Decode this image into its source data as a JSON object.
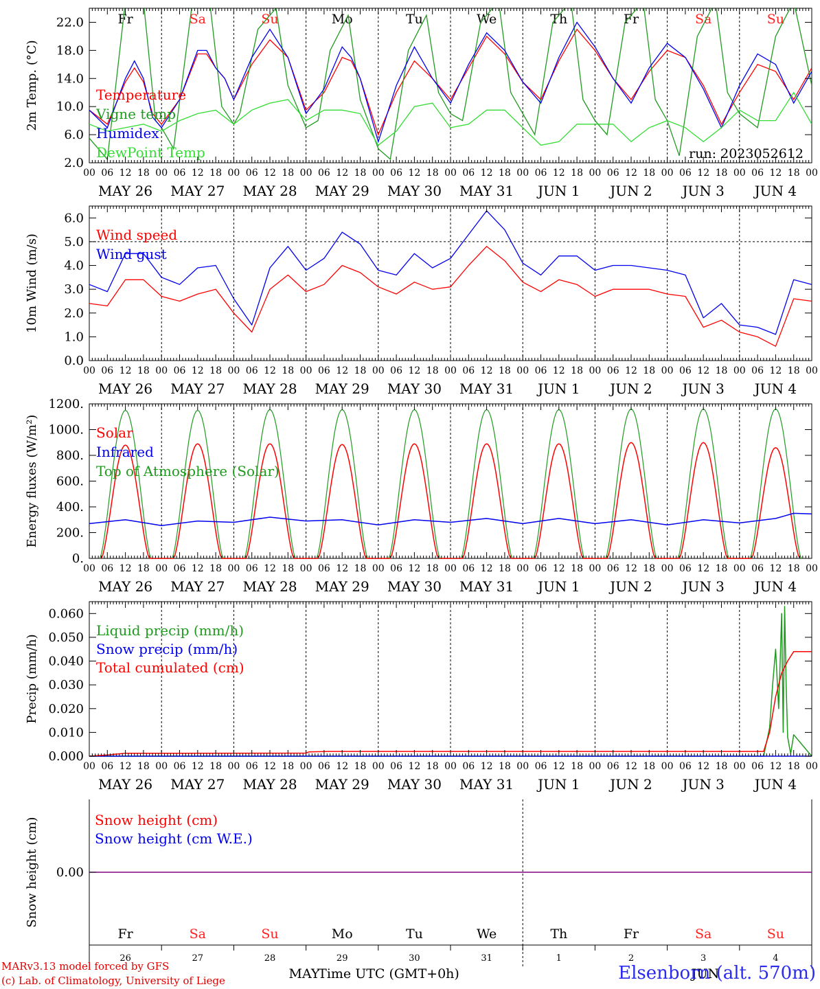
{
  "colors": {
    "red": "#ff0000",
    "green": "#1f9a1f",
    "blue": "#0000ee",
    "light_green": "#33dd33",
    "purple": "#800080",
    "weekend": "#ff2020",
    "weekday": "#000000",
    "station": "#2a2af0"
  },
  "time_axis": {
    "hour_labels": [
      "00",
      "06",
      "12",
      "18"
    ],
    "date_labels": [
      "MAY 26",
      "MAY 27",
      "MAY 28",
      "MAY 29",
      "MAY 30",
      "MAY 31",
      "JUN  1",
      "JUN  2",
      "JUN  3",
      "JUN  4"
    ],
    "weekdays": [
      {
        "label": "Fr",
        "weekend": false
      },
      {
        "label": "Sa",
        "weekend": true
      },
      {
        "label": "Su",
        "weekend": true
      },
      {
        "label": "Mo",
        "weekend": false
      },
      {
        "label": "Tu",
        "weekend": false
      },
      {
        "label": "We",
        "weekend": false
      },
      {
        "label": "Th",
        "weekend": false
      },
      {
        "label": "Fr",
        "weekend": false
      },
      {
        "label": "Sa",
        "weekend": true
      },
      {
        "label": "Su",
        "weekend": true
      }
    ],
    "day_numbers": [
      "26",
      "27",
      "28",
      "29",
      "30",
      "31",
      "1",
      "2",
      "3",
      "4"
    ],
    "month_labels": [
      "MAY",
      "JUN"
    ],
    "xlabel": "Time UTC (GMT+0h)"
  },
  "chart_data": [
    {
      "type": "line",
      "ylabel": "2m Temp. (°C)",
      "ylim": [
        2.0,
        24.0
      ],
      "yticks": [
        "2.0",
        "6.0",
        "10.0",
        "14.0",
        "18.0",
        "22.0"
      ],
      "ytick_values": [
        2,
        6,
        10,
        14,
        18,
        22
      ],
      "note": "run: 2023052612",
      "x_unit": "hours since MAY 26 00 UTC",
      "series": [
        {
          "name": "Temperature",
          "color": "red",
          "x": [
            0,
            6,
            12,
            15,
            18,
            21,
            24,
            30,
            36,
            39,
            42,
            45,
            48,
            54,
            60,
            66,
            72,
            78,
            84,
            87,
            90,
            96,
            102,
            108,
            114,
            120,
            126,
            132,
            138,
            144,
            150,
            156,
            162,
            168,
            174,
            180,
            186,
            192,
            198,
            204,
            210,
            216,
            222,
            228,
            234,
            240
          ],
          "y": [
            9.5,
            7.5,
            13.5,
            15.5,
            13.5,
            9,
            7.5,
            11,
            17.5,
            17.5,
            15.5,
            14,
            11,
            16,
            19.5,
            17,
            9.5,
            12,
            17,
            16.5,
            14,
            6,
            12,
            16.5,
            14,
            11,
            15.5,
            20,
            17.5,
            13.5,
            11,
            16.5,
            21,
            18,
            14,
            11,
            15,
            18,
            17,
            13,
            7.5,
            12,
            16,
            15,
            11,
            15.5
          ]
        },
        {
          "name": "Vigne temp",
          "color": "green",
          "x": [
            0,
            6,
            12,
            18,
            22,
            24,
            28,
            34,
            40,
            44,
            48,
            50,
            56,
            62,
            66,
            72,
            76,
            80,
            86,
            90,
            96,
            100,
            106,
            112,
            116,
            120,
            124,
            130,
            136,
            140,
            144,
            148,
            154,
            160,
            164,
            168,
            172,
            178,
            184,
            188,
            192,
            196,
            202,
            208,
            212,
            216,
            222,
            228,
            234,
            240
          ],
          "y": [
            5.5,
            2.5,
            25,
            25,
            8,
            7,
            4,
            24,
            25,
            10,
            7.5,
            9,
            21,
            24,
            13,
            7,
            8,
            18,
            23,
            11,
            4,
            2.5,
            18,
            23,
            12,
            9,
            8,
            22,
            25,
            12,
            9,
            6,
            22,
            25,
            11,
            8,
            6,
            22,
            25,
            11,
            8,
            3,
            20,
            25,
            12,
            9,
            7,
            20,
            25,
            13
          ]
        },
        {
          "name": "Humidex",
          "color": "blue",
          "x": [
            0,
            6,
            12,
            15,
            18,
            21,
            24,
            30,
            36,
            39,
            42,
            45,
            48,
            54,
            60,
            66,
            72,
            78,
            84,
            87,
            90,
            96,
            102,
            108,
            114,
            120,
            126,
            132,
            138,
            144,
            150,
            156,
            162,
            168,
            174,
            180,
            186,
            192,
            198,
            204,
            210,
            216,
            222,
            228,
            234,
            240
          ],
          "y": [
            9.5,
            7,
            14,
            16.5,
            14,
            8.5,
            7,
            11,
            18,
            18,
            15.5,
            14,
            11,
            17,
            21,
            17,
            9,
            12.5,
            18.5,
            17,
            14,
            5,
            13,
            18.5,
            14,
            10.5,
            16,
            20.5,
            18,
            13.5,
            10.5,
            17,
            22,
            18.5,
            14,
            10.5,
            15.5,
            19,
            17,
            12.5,
            7,
            13,
            17.5,
            16,
            10.5,
            15
          ]
        },
        {
          "name": "DewPoint Temp",
          "color": "light_green",
          "x": [
            0,
            6,
            12,
            18,
            24,
            30,
            36,
            42,
            48,
            54,
            60,
            66,
            72,
            78,
            84,
            90,
            96,
            102,
            108,
            114,
            120,
            126,
            132,
            138,
            144,
            150,
            156,
            162,
            168,
            174,
            180,
            186,
            192,
            198,
            204,
            210,
            216,
            222,
            228,
            234,
            240
          ],
          "y": [
            7.5,
            6.5,
            7,
            7.5,
            6.5,
            8,
            9,
            9.5,
            7.5,
            9.5,
            10.5,
            11,
            8,
            9.5,
            9.5,
            9,
            4.5,
            6.5,
            10,
            10.5,
            7,
            7.5,
            9.5,
            9.5,
            7,
            4.5,
            5,
            7.5,
            7.5,
            7.5,
            5,
            7,
            8,
            7,
            5,
            7,
            9.5,
            8,
            8,
            12,
            7.5
          ]
        }
      ]
    },
    {
      "type": "line",
      "ylabel": "10m Wind (m/s)",
      "ylim": [
        0.0,
        6.5
      ],
      "yticks": [
        "0.0",
        "1.0",
        "2.0",
        "3.0",
        "4.0",
        "5.0",
        "6.0"
      ],
      "ytick_values": [
        0,
        1,
        2,
        3,
        4,
        5,
        6
      ],
      "x_unit": "hours since MAY 26 00 UTC",
      "series": [
        {
          "name": "Wind speed",
          "color": "red",
          "x": [
            0,
            6,
            12,
            18,
            24,
            30,
            36,
            42,
            48,
            54,
            60,
            66,
            72,
            78,
            84,
            90,
            96,
            102,
            108,
            114,
            120,
            126,
            132,
            138,
            144,
            150,
            156,
            162,
            168,
            174,
            180,
            186,
            192,
            198,
            204,
            210,
            216,
            222,
            228,
            234,
            240
          ],
          "y": [
            2.4,
            2.3,
            3.4,
            3.4,
            2.7,
            2.5,
            2.8,
            3.0,
            2.0,
            1.2,
            3.0,
            3.6,
            2.9,
            3.2,
            4.0,
            3.7,
            3.1,
            2.8,
            3.3,
            3.0,
            3.1,
            4.0,
            4.8,
            4.2,
            3.3,
            2.9,
            3.4,
            3.2,
            2.7,
            3.0,
            3.0,
            3.0,
            2.8,
            2.7,
            1.4,
            1.7,
            1.2,
            1.0,
            0.6,
            2.6,
            2.5
          ]
        },
        {
          "name": "Wind gust",
          "color": "blue",
          "x": [
            0,
            6,
            12,
            18,
            24,
            30,
            36,
            42,
            48,
            54,
            60,
            66,
            72,
            78,
            84,
            90,
            96,
            102,
            108,
            114,
            120,
            126,
            132,
            138,
            144,
            150,
            156,
            162,
            168,
            174,
            180,
            186,
            192,
            198,
            204,
            210,
            216,
            222,
            228,
            234,
            240
          ],
          "y": [
            3.2,
            2.9,
            4.5,
            4.5,
            3.5,
            3.2,
            3.9,
            4.0,
            2.6,
            1.5,
            3.9,
            4.8,
            3.8,
            4.3,
            5.4,
            4.9,
            3.8,
            3.6,
            4.5,
            3.9,
            4.3,
            5.3,
            6.3,
            5.5,
            4.1,
            3.6,
            4.4,
            4.4,
            3.8,
            4.0,
            4.0,
            3.9,
            3.8,
            3.6,
            1.8,
            2.4,
            1.5,
            1.4,
            1.1,
            3.4,
            3.2
          ]
        }
      ]
    },
    {
      "type": "line",
      "ylabel": "Energy fluxes (W/m²)",
      "ylim": [
        0,
        1200
      ],
      "yticks": [
        "0.",
        "200.",
        "400.",
        "600.",
        "800.",
        "1000.",
        "1200."
      ],
      "ytick_values": [
        0,
        200,
        400,
        600,
        800,
        1000,
        1200
      ],
      "x_unit": "hours since MAY 26 00 UTC",
      "series": [
        {
          "name": "Solar",
          "color": "red",
          "daily_peak_hour": 12,
          "daylight_hours": [
            4,
            20
          ],
          "daily_peaks": [
            880,
            890,
            890,
            885,
            890,
            890,
            890,
            900,
            900,
            860
          ]
        },
        {
          "name": "Infrared",
          "color": "blue",
          "x": [
            0,
            12,
            24,
            36,
            48,
            60,
            72,
            84,
            96,
            108,
            120,
            132,
            144,
            156,
            168,
            180,
            192,
            204,
            216,
            228,
            234,
            240
          ],
          "y": [
            270,
            300,
            255,
            290,
            280,
            320,
            290,
            300,
            260,
            300,
            280,
            310,
            270,
            310,
            270,
            300,
            260,
            300,
            275,
            310,
            350,
            345
          ]
        },
        {
          "name": "Top of Atmosphere (Solar)",
          "color": "green",
          "daily_peak_hour": 12,
          "daylight_hours": [
            3.5,
            20.5
          ],
          "daily_peaks": [
            1150,
            1150,
            1155,
            1155,
            1155,
            1155,
            1155,
            1160,
            1160,
            1160
          ]
        }
      ]
    },
    {
      "type": "line",
      "ylabel": "Precip (mm/h)",
      "ylim": [
        0.0,
        0.065
      ],
      "yticks": [
        "0.000",
        "0.010",
        "0.020",
        "0.030",
        "0.040",
        "0.050",
        "0.060"
      ],
      "ytick_values": [
        0,
        0.01,
        0.02,
        0.03,
        0.04,
        0.05,
        0.06
      ],
      "x_unit": "hours since MAY 26 00 UTC",
      "series": [
        {
          "name": "Liquid precip (mm/h)",
          "color": "green",
          "x": [
            0,
            224,
            226,
            227,
            228,
            229,
            230,
            230.5,
            231,
            231.5,
            232,
            233,
            234,
            240
          ],
          "y": [
            0,
            0,
            0.012,
            0.03,
            0.045,
            0.02,
            0.06,
            0.01,
            0.063,
            0.03,
            0.008,
            0.001,
            0.009,
            0
          ]
        },
        {
          "name": "Snow precip (mm/h)",
          "color": "blue",
          "x": [
            0,
            240
          ],
          "y": [
            0,
            0
          ]
        },
        {
          "name": "Total cumulated (cm)",
          "color": "red",
          "x": [
            0,
            6,
            12,
            72,
            73,
            80,
            224,
            226,
            228,
            230,
            232,
            234,
            240
          ],
          "y": [
            0,
            0.0005,
            0.0012,
            0.0013,
            0.0018,
            0.002,
            0.002,
            0.01,
            0.025,
            0.035,
            0.04,
            0.044,
            0.044
          ]
        }
      ]
    },
    {
      "type": "line",
      "ylabel": "Snow height (cm)",
      "yticks": [
        "0.00"
      ],
      "ytick_values": [
        0
      ],
      "x_unit": "hours since MAY 26 00 UTC",
      "series": [
        {
          "name": "Snow height (cm)",
          "color": "red",
          "x": [
            0,
            240
          ],
          "y": [
            0,
            0
          ]
        },
        {
          "name": "Snow height (cm W.E.)",
          "color": "blue",
          "x": [
            0,
            240
          ],
          "y": [
            0,
            0
          ]
        }
      ]
    }
  ],
  "footer": {
    "credit_line1": "MARv3.13 model forced by GFS",
    "credit_line2": "(c) Lab. of Climatology, University of Liege",
    "station": "Elsenborn (alt. 570m)"
  }
}
